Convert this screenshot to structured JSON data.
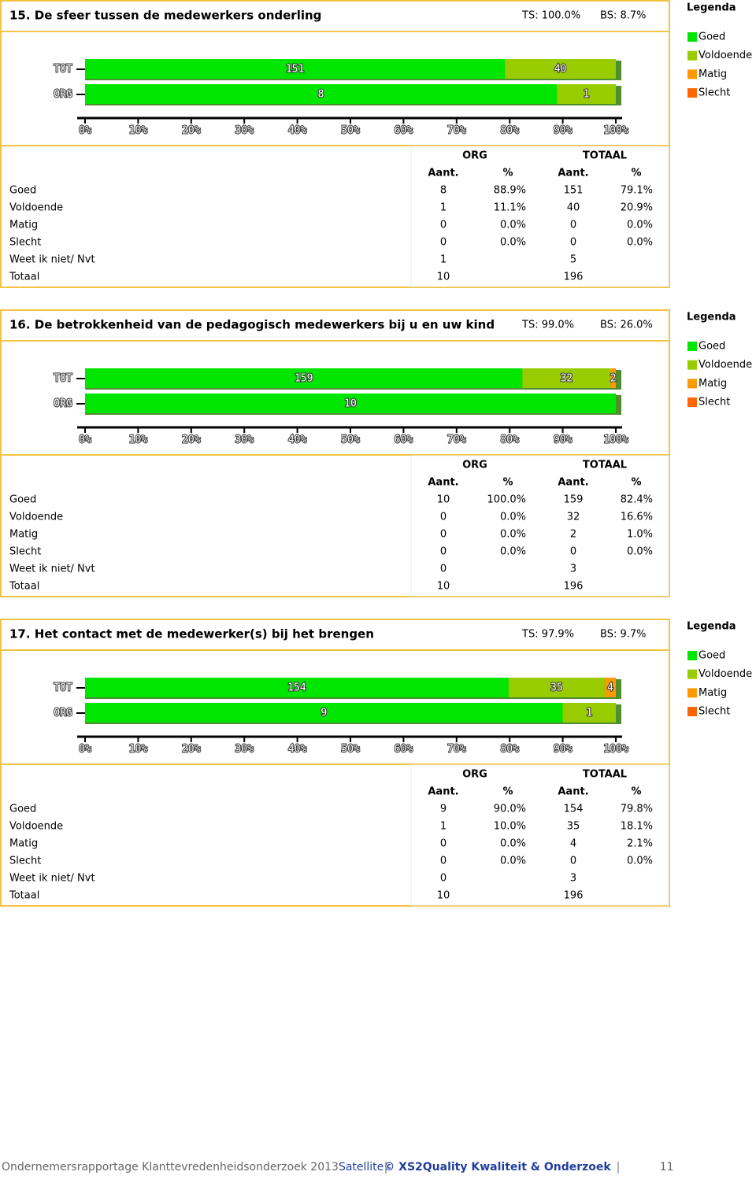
{
  "chart_data": [
    {
      "type": "bar",
      "categories": [
        "TOT",
        "ORG"
      ],
      "legend_title": "Legenda",
      "series": [
        {
          "name": "Goed",
          "color": "#00e600",
          "values": [
            79.1,
            88.9
          ]
        },
        {
          "name": "Voldoende",
          "color": "#99cc00",
          "values": [
            20.9,
            11.1
          ]
        },
        {
          "name": "Matig",
          "color": "#ff9900",
          "values": [
            0,
            0
          ]
        },
        {
          "name": "Slecht",
          "color": "#ff6600",
          "values": [
            0,
            0
          ]
        }
      ],
      "xlim": [
        0,
        100
      ],
      "xticks": [
        {
          "value": 0,
          "label": "0%"
        },
        {
          "value": 10,
          "label": "10%"
        },
        {
          "value": 20,
          "label": "20%"
        },
        {
          "value": 30,
          "label": "30%"
        },
        {
          "value": 40,
          "label": "40%"
        },
        {
          "value": 50,
          "label": "50%"
        },
        {
          "value": 60,
          "label": "60%"
        },
        {
          "value": 70,
          "label": "70%"
        },
        {
          "value": 80,
          "label": "80%"
        },
        {
          "value": 90,
          "label": "90%"
        },
        {
          "value": 100,
          "label": "100%"
        }
      ]
    },
    {
      "type": "bar",
      "categories": [
        "TOT",
        "ORG"
      ],
      "legend_title": "Legenda",
      "series": [
        {
          "name": "Goed",
          "color": "#00e600",
          "values": [
            82.4,
            100.0
          ]
        },
        {
          "name": "Voldoende",
          "color": "#99cc00",
          "values": [
            16.6,
            0
          ]
        },
        {
          "name": "Matig",
          "color": "#ff9900",
          "values": [
            1.0,
            0
          ]
        },
        {
          "name": "Slecht",
          "color": "#ff6600",
          "values": [
            0,
            0
          ]
        }
      ],
      "xlim": [
        0,
        100
      ],
      "xticks": [
        {
          "value": 0,
          "label": "0%"
        },
        {
          "value": 10,
          "label": "10%"
        },
        {
          "value": 20,
          "label": "20%"
        },
        {
          "value": 30,
          "label": "30%"
        },
        {
          "value": 40,
          "label": "40%"
        },
        {
          "value": 50,
          "label": "50%"
        },
        {
          "value": 60,
          "label": "60%"
        },
        {
          "value": 70,
          "label": "70%"
        },
        {
          "value": 80,
          "label": "80%"
        },
        {
          "value": 90,
          "label": "90%"
        },
        {
          "value": 100,
          "label": "100%"
        }
      ]
    },
    {
      "type": "bar",
      "categories": [
        "TOT",
        "ORG"
      ],
      "legend_title": "Legenda",
      "series": [
        {
          "name": "Goed",
          "color": "#00e600",
          "values": [
            79.8,
            90.0
          ]
        },
        {
          "name": "Voldoende",
          "color": "#99cc00",
          "values": [
            18.1,
            10.0
          ]
        },
        {
          "name": "Matig",
          "color": "#ff9900",
          "values": [
            2.1,
            0
          ]
        },
        {
          "name": "Slecht",
          "color": "#ff6600",
          "values": [
            0,
            0
          ]
        }
      ],
      "xlim": [
        0,
        100
      ],
      "xticks": [
        {
          "value": 0,
          "label": "0%"
        },
        {
          "value": 10,
          "label": "10%"
        },
        {
          "value": 20,
          "label": "20%"
        },
        {
          "value": 30,
          "label": "30%"
        },
        {
          "value": 40,
          "label": "40%"
        },
        {
          "value": 50,
          "label": "50%"
        },
        {
          "value": 60,
          "label": "60%"
        },
        {
          "value": 70,
          "label": "70%"
        },
        {
          "value": 80,
          "label": "80%"
        },
        {
          "value": 90,
          "label": "90%"
        },
        {
          "value": 100,
          "label": "100%"
        }
      ]
    }
  ],
  "sections": [
    {
      "title": "15. De sfeer tussen de medewerkers onderling",
      "ts": "TS: 100.0%",
      "bs": "BS: 8.7%",
      "table": {
        "groups": [
          "ORG",
          "TOTAAL"
        ],
        "columns": [
          "Aant.",
          "%",
          "Aant.",
          "%"
        ],
        "rows": [
          [
            "Goed",
            "8",
            "88.9%",
            "151",
            "79.1%"
          ],
          [
            "Voldoende",
            "1",
            "11.1%",
            "40",
            "20.9%"
          ],
          [
            "Matig",
            "0",
            "0.0%",
            "0",
            "0.0%"
          ],
          [
            "Slecht",
            "0",
            "0.0%",
            "0",
            "0.0%"
          ],
          [
            "Weet ik niet/ Nvt",
            "1",
            null,
            "5",
            null
          ],
          [
            "Totaal",
            "10",
            null,
            "196",
            null
          ]
        ]
      }
    },
    {
      "title": "16. De betrokkenheid van de pedagogisch medewerkers bij u en uw kind",
      "ts": "TS: 99.0%",
      "bs": "BS: 26.0%",
      "table": {
        "groups": [
          "ORG",
          "TOTAAL"
        ],
        "columns": [
          "Aant.",
          "%",
          "Aant.",
          "%"
        ],
        "rows": [
          [
            "Goed",
            "10",
            "100.0%",
            "159",
            "82.4%"
          ],
          [
            "Voldoende",
            "0",
            "0.0%",
            "32",
            "16.6%"
          ],
          [
            "Matig",
            "0",
            "0.0%",
            "2",
            "1.0%"
          ],
          [
            "Slecht",
            "0",
            "0.0%",
            "0",
            "0.0%"
          ],
          [
            "Weet ik niet/ Nvt",
            "0",
            null,
            "3",
            null
          ],
          [
            "Totaal",
            "10",
            null,
            "196",
            null
          ]
        ]
      }
    },
    {
      "title": "17. Het contact met de medewerker(s) bij het brengen",
      "ts": "TS: 97.9%",
      "bs": "BS: 9.7%",
      "table": {
        "groups": [
          "ORG",
          "TOTAAL"
        ],
        "columns": [
          "Aant.",
          "%",
          "Aant.",
          "%"
        ],
        "rows": [
          [
            "Goed",
            "9",
            "90.0%",
            "154",
            "79.8%"
          ],
          [
            "Voldoende",
            "1",
            "10.0%",
            "35",
            "18.1%"
          ],
          [
            "Matig",
            "0",
            "0.0%",
            "4",
            "2.1%"
          ],
          [
            "Slecht",
            "0",
            "0.0%",
            "0",
            "0.0%"
          ],
          [
            "Weet ik niet/ Nvt",
            "0",
            null,
            "3",
            null
          ],
          [
            "Totaal",
            "10",
            null,
            "196",
            null
          ]
        ]
      }
    }
  ],
  "footer": {
    "report": "Ondernemersrapportage Klanttevredenheidsonderzoek 2013",
    "product": "Satellite",
    "copyright": "© XS2Quality Kwaliteit & Onderzoek",
    "page": "11"
  }
}
